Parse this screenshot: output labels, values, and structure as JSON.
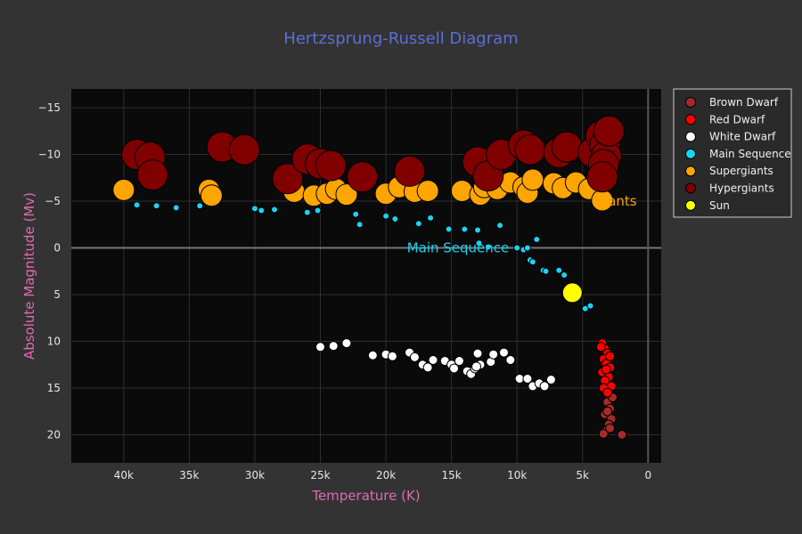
{
  "chart_data": {
    "type": "scatter",
    "title": "Hertzsprung-Russell Diagram",
    "xlabel": "Temperature (K)",
    "ylabel": "Absolute Magnitude (Mv)",
    "xlim": [
      44000,
      -1000
    ],
    "ylim": [
      23,
      -17
    ],
    "x_ticks": [
      40000,
      35000,
      30000,
      25000,
      20000,
      15000,
      10000,
      5000,
      0
    ],
    "x_tick_labels": [
      "40k",
      "35k",
      "30k",
      "25k",
      "20k",
      "15k",
      "10k",
      "5k",
      "0"
    ],
    "y_ticks": [
      -15,
      -10,
      -5,
      0,
      5,
      10,
      15,
      20
    ],
    "y_tick_labels": [
      "−15",
      "−10",
      "−5",
      "0",
      "5",
      "10",
      "15",
      "20"
    ],
    "grid": true,
    "legend_position": "right",
    "annotations": [
      {
        "text": "Main Sequence",
        "x": 14500,
        "y": 0,
        "color": "#19d3f3"
      },
      {
        "text": "Giants",
        "x": 2500,
        "y": -5,
        "color": "#ffa500"
      }
    ],
    "series": [
      {
        "name": "Brown Dwarf",
        "color": "#a52a2a",
        "size": 10,
        "points": [
          [
            3100,
            16.5
          ],
          [
            2900,
            17.2
          ],
          [
            3300,
            17.8
          ],
          [
            2800,
            18.3
          ],
          [
            3000,
            18.9
          ],
          [
            3200,
            19.6
          ],
          [
            2700,
            16.0
          ],
          [
            3400,
            19.9
          ],
          [
            2900,
            19.3
          ],
          [
            2000,
            20.0
          ],
          [
            3100,
            17.5
          ]
        ]
      },
      {
        "name": "Red Dwarf",
        "color": "#ff0000",
        "size": 10,
        "points": [
          [
            3500,
            10.2
          ],
          [
            3300,
            10.8
          ],
          [
            3100,
            11.3
          ],
          [
            3400,
            11.9
          ],
          [
            3200,
            12.4
          ],
          [
            2900,
            12.8
          ],
          [
            3500,
            13.3
          ],
          [
            3000,
            13.8
          ],
          [
            3300,
            14.2
          ],
          [
            2800,
            14.8
          ],
          [
            3400,
            15.0
          ],
          [
            3100,
            15.5
          ],
          [
            3600,
            10.6
          ],
          [
            2900,
            11.6
          ],
          [
            3200,
            13.0
          ]
        ]
      },
      {
        "name": "White Dwarf",
        "color": "#ffffff",
        "size": 10,
        "points": [
          [
            25000,
            10.6
          ],
          [
            24000,
            10.5
          ],
          [
            23000,
            10.2
          ],
          [
            21000,
            11.5
          ],
          [
            20000,
            11.4
          ],
          [
            19500,
            11.6
          ],
          [
            18200,
            11.2
          ],
          [
            17800,
            11.7
          ],
          [
            17200,
            12.5
          ],
          [
            16800,
            12.8
          ],
          [
            16400,
            12.0
          ],
          [
            15500,
            12.1
          ],
          [
            15000,
            12.5
          ],
          [
            14800,
            12.9
          ],
          [
            14400,
            12.1
          ],
          [
            13800,
            13.2
          ],
          [
            13500,
            13.5
          ],
          [
            13200,
            12.9
          ],
          [
            13000,
            11.3
          ],
          [
            12800,
            12.5
          ],
          [
            12000,
            12.2
          ],
          [
            11800,
            11.4
          ],
          [
            11000,
            11.2
          ],
          [
            10500,
            12.0
          ],
          [
            9800,
            14.0
          ],
          [
            9200,
            14.0
          ],
          [
            8800,
            14.8
          ],
          [
            8300,
            14.5
          ],
          [
            7900,
            14.8
          ],
          [
            7400,
            14.1
          ],
          [
            13100,
            12.7
          ]
        ]
      },
      {
        "name": "Main Sequence",
        "color": "#19d3f3",
        "size": 7,
        "points": [
          [
            39000,
            -4.6
          ],
          [
            37500,
            -4.5
          ],
          [
            36000,
            -4.3
          ],
          [
            34200,
            -4.5
          ],
          [
            30000,
            -4.2
          ],
          [
            29500,
            -4.0
          ],
          [
            28500,
            -4.1
          ],
          [
            26000,
            -3.8
          ],
          [
            25200,
            -4.0
          ],
          [
            22300,
            -3.6
          ],
          [
            22000,
            -2.5
          ],
          [
            20000,
            -3.4
          ],
          [
            19300,
            -3.1
          ],
          [
            17500,
            -2.6
          ],
          [
            16600,
            -3.2
          ],
          [
            15200,
            -2.0
          ],
          [
            14000,
            -2.0
          ],
          [
            13000,
            -1.9
          ],
          [
            12900,
            -0.5
          ],
          [
            12200,
            -0.1
          ],
          [
            11300,
            -2.4
          ],
          [
            10000,
            0.0
          ],
          [
            9500,
            0.2
          ],
          [
            9000,
            1.3
          ],
          [
            8800,
            1.5
          ],
          [
            8500,
            -0.9
          ],
          [
            8000,
            2.4
          ],
          [
            7800,
            2.5
          ],
          [
            6800,
            2.4
          ],
          [
            6400,
            2.9
          ],
          [
            5500,
            4.5
          ],
          [
            5200,
            4.8
          ],
          [
            4800,
            6.5
          ],
          [
            4400,
            6.2
          ],
          [
            9200,
            0.0
          ]
        ]
      },
      {
        "name": "Supergiants",
        "color": "#ffa500",
        "size": 24,
        "points": [
          [
            40000,
            -6.2
          ],
          [
            33500,
            -6.2
          ],
          [
            33300,
            -5.6
          ],
          [
            27000,
            -6.0
          ],
          [
            25500,
            -5.6
          ],
          [
            24500,
            -5.8
          ],
          [
            23800,
            -6.3
          ],
          [
            23000,
            -5.7
          ],
          [
            20000,
            -5.8
          ],
          [
            19000,
            -6.5
          ],
          [
            17800,
            -6.0
          ],
          [
            16800,
            -6.1
          ],
          [
            14200,
            -6.1
          ],
          [
            12800,
            -5.7
          ],
          [
            12500,
            -6.5
          ],
          [
            11500,
            -6.3
          ],
          [
            10500,
            -7.0
          ],
          [
            9500,
            -6.5
          ],
          [
            9200,
            -5.9
          ],
          [
            8800,
            -7.3
          ],
          [
            7200,
            -6.9
          ],
          [
            6500,
            -6.4
          ],
          [
            5500,
            -7.0
          ],
          [
            4500,
            -6.3
          ],
          [
            3500,
            -5.1
          ],
          [
            3400,
            -7.2
          ]
        ]
      },
      {
        "name": "Hypergiants",
        "color": "#800000",
        "size": 34,
        "points": [
          [
            39000,
            -10.0
          ],
          [
            38000,
            -9.7
          ],
          [
            37800,
            -7.8
          ],
          [
            32500,
            -10.8
          ],
          [
            30800,
            -10.5
          ],
          [
            27500,
            -7.4
          ],
          [
            26000,
            -9.5
          ],
          [
            25000,
            -9.0
          ],
          [
            24200,
            -8.8
          ],
          [
            21800,
            -7.6
          ],
          [
            18200,
            -8.2
          ],
          [
            13000,
            -9.2
          ],
          [
            12200,
            -7.7
          ],
          [
            11200,
            -10.0
          ],
          [
            9500,
            -11.0
          ],
          [
            9000,
            -10.5
          ],
          [
            6800,
            -10.2
          ],
          [
            6200,
            -10.8
          ],
          [
            4200,
            -10.2
          ],
          [
            3600,
            -12.0
          ],
          [
            3300,
            -11.0
          ],
          [
            3200,
            -9.8
          ],
          [
            3400,
            -8.9
          ],
          [
            3500,
            -7.6
          ],
          [
            3000,
            -12.5
          ]
        ]
      },
      {
        "name": "Sun",
        "color": "#ffff00",
        "size": 22,
        "points": [
          [
            5778,
            4.8
          ]
        ]
      }
    ]
  }
}
